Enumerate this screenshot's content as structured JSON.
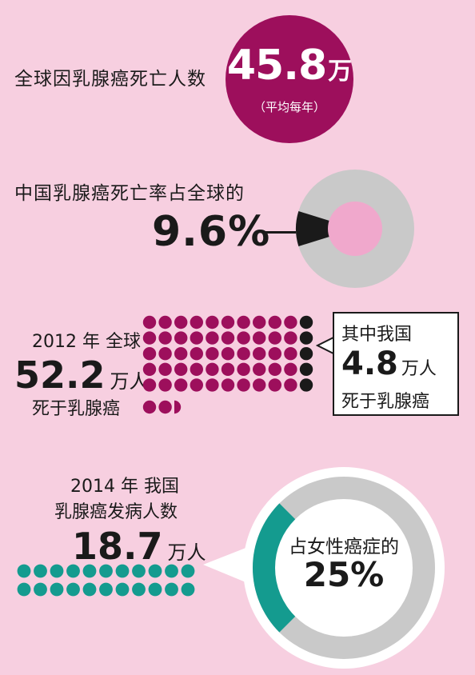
{
  "section1": {
    "label": "全球因乳腺癌死亡人数",
    "value": "45.8",
    "unit": "万",
    "sub": "（平均每年）"
  },
  "section2": {
    "label": "中国乳腺癌死亡率占全球的",
    "percent_text": "9.6%"
  },
  "section3": {
    "line1": "2012 年  全球",
    "value": "52.2",
    "unit": "万人",
    "line3": "死于乳腺癌",
    "box_line1": "其中我国",
    "box_value": "4.8",
    "box_unit": "万人",
    "box_line3": "死于乳腺癌"
  },
  "section4": {
    "line1": "2014 年  我国",
    "line2": "乳腺癌发病人数",
    "value": "18.7",
    "unit": "万人",
    "inner_line1": "占女性癌症的",
    "inner_line2": "25%"
  },
  "colors": {
    "background": "#f7cfe0",
    "magenta": "#9d0f5c",
    "teal": "#149b8f",
    "gray": "#c9c9c9",
    "pink": "#f0a8cc",
    "black": "#1a1a1a"
  },
  "chart_data": [
    {
      "type": "pie",
      "description_series": "China share of global breast cancer deaths",
      "values": [
        9.6,
        90.4
      ],
      "labels": [
        "9.6%",
        ""
      ]
    },
    {
      "type": "pictograph",
      "values": {
        "global_deaths_wan": 52.2,
        "china_deaths_wan": 4.8
      }
    },
    {
      "type": "pie",
      "values": [
        25,
        75
      ],
      "labels": [
        "25%",
        ""
      ]
    }
  ]
}
